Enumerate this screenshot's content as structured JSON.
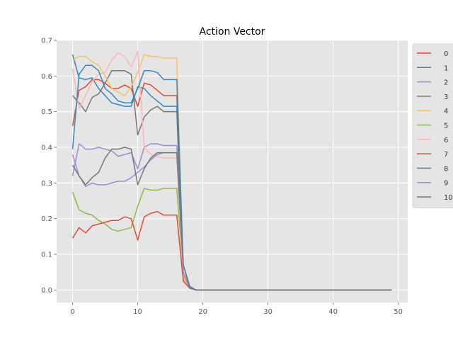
{
  "chart_data": {
    "type": "line",
    "title": "Action Vector",
    "xlabel": "",
    "ylabel": "",
    "xlim": [
      -2.45,
      51.45
    ],
    "ylim": [
      -0.035,
      0.7
    ],
    "xticks": [
      0,
      10,
      20,
      30,
      40,
      50
    ],
    "yticks": [
      0.0,
      0.1,
      0.2,
      0.3,
      0.4,
      0.5,
      0.6,
      0.7
    ],
    "xtick_labels": [
      "0",
      "10",
      "20",
      "30",
      "40",
      "50"
    ],
    "ytick_labels": [
      "0.0",
      "0.1",
      "0.2",
      "0.3",
      "0.4",
      "0.5",
      "0.6",
      "0.7"
    ],
    "grid": true,
    "legend_position": "outside right",
    "background": "#e5e5e5",
    "series": [
      {
        "name": "0",
        "color": "#e24a33",
        "values": [
          0.46,
          0.56,
          0.57,
          0.59,
          0.59,
          0.58,
          0.565,
          0.565,
          0.575,
          0.565,
          0.515,
          0.58,
          0.575,
          0.56,
          0.545,
          0.545,
          0.545,
          0.025,
          0.005,
          0.0
        ]
      },
      {
        "name": "1",
        "color": "#348abd",
        "values": [
          0.66,
          0.595,
          0.59,
          0.595,
          0.565,
          0.545,
          0.525,
          0.52,
          0.515,
          0.515,
          0.57,
          0.565,
          0.545,
          0.53,
          0.515,
          0.515,
          0.515,
          0.03,
          0.005,
          0.0
        ]
      },
      {
        "name": "2",
        "color": "#988ed5",
        "values": [
          0.32,
          0.41,
          0.395,
          0.395,
          0.4,
          0.395,
          0.39,
          0.375,
          0.38,
          0.385,
          0.34,
          0.4,
          0.41,
          0.41,
          0.405,
          0.405,
          0.405,
          0.03,
          0.005,
          0.0
        ]
      },
      {
        "name": "3",
        "color": "#777777",
        "values": [
          0.545,
          0.525,
          0.5,
          0.54,
          0.55,
          0.58,
          0.615,
          0.615,
          0.615,
          0.605,
          0.435,
          0.485,
          0.505,
          0.515,
          0.5,
          0.5,
          0.5,
          0.03,
          0.005,
          0.0
        ]
      },
      {
        "name": "4",
        "color": "#fbc15e",
        "values": [
          0.645,
          0.655,
          0.655,
          0.64,
          0.63,
          0.6,
          0.565,
          0.555,
          0.545,
          0.57,
          0.61,
          0.66,
          0.655,
          0.655,
          0.65,
          0.65,
          0.65,
          0.04,
          0.005,
          0.0
        ]
      },
      {
        "name": "5",
        "color": "#8eba42",
        "values": [
          0.275,
          0.225,
          0.215,
          0.21,
          0.195,
          0.185,
          0.17,
          0.165,
          0.17,
          0.175,
          0.235,
          0.285,
          0.28,
          0.28,
          0.285,
          0.285,
          0.285,
          0.045,
          0.005,
          0.0
        ]
      },
      {
        "name": "6",
        "color": "#ffb5b8",
        "values": [
          0.62,
          0.51,
          0.545,
          0.585,
          0.605,
          0.61,
          0.645,
          0.665,
          0.655,
          0.625,
          0.67,
          0.4,
          0.38,
          0.375,
          0.37,
          0.37,
          0.37,
          0.03,
          0.005,
          0.0
        ]
      },
      {
        "name": "7",
        "color": "#e24a33",
        "values": [
          0.145,
          0.175,
          0.16,
          0.18,
          0.185,
          0.19,
          0.195,
          0.195,
          0.205,
          0.2,
          0.14,
          0.205,
          0.215,
          0.22,
          0.21,
          0.21,
          0.21,
          0.025,
          0.005,
          0.0
        ]
      },
      {
        "name": "8",
        "color": "#348abd",
        "values": [
          0.395,
          0.605,
          0.63,
          0.63,
          0.615,
          0.565,
          0.55,
          0.53,
          0.525,
          0.525,
          0.565,
          0.615,
          0.615,
          0.61,
          0.59,
          0.59,
          0.59,
          0.07,
          0.01,
          0.0
        ]
      },
      {
        "name": "9",
        "color": "#988ed5",
        "values": [
          0.38,
          0.32,
          0.29,
          0.3,
          0.295,
          0.295,
          0.3,
          0.305,
          0.305,
          0.315,
          0.33,
          0.345,
          0.365,
          0.38,
          0.385,
          0.385,
          0.385,
          0.05,
          0.005,
          0.0
        ]
      },
      {
        "name": "10",
        "color": "#777777",
        "values": [
          0.35,
          0.32,
          0.295,
          0.315,
          0.33,
          0.37,
          0.395,
          0.395,
          0.4,
          0.395,
          0.295,
          0.34,
          0.37,
          0.385,
          0.385,
          0.385,
          0.385,
          0.07,
          0.005,
          0.0
        ]
      }
    ],
    "x_count": 50
  }
}
